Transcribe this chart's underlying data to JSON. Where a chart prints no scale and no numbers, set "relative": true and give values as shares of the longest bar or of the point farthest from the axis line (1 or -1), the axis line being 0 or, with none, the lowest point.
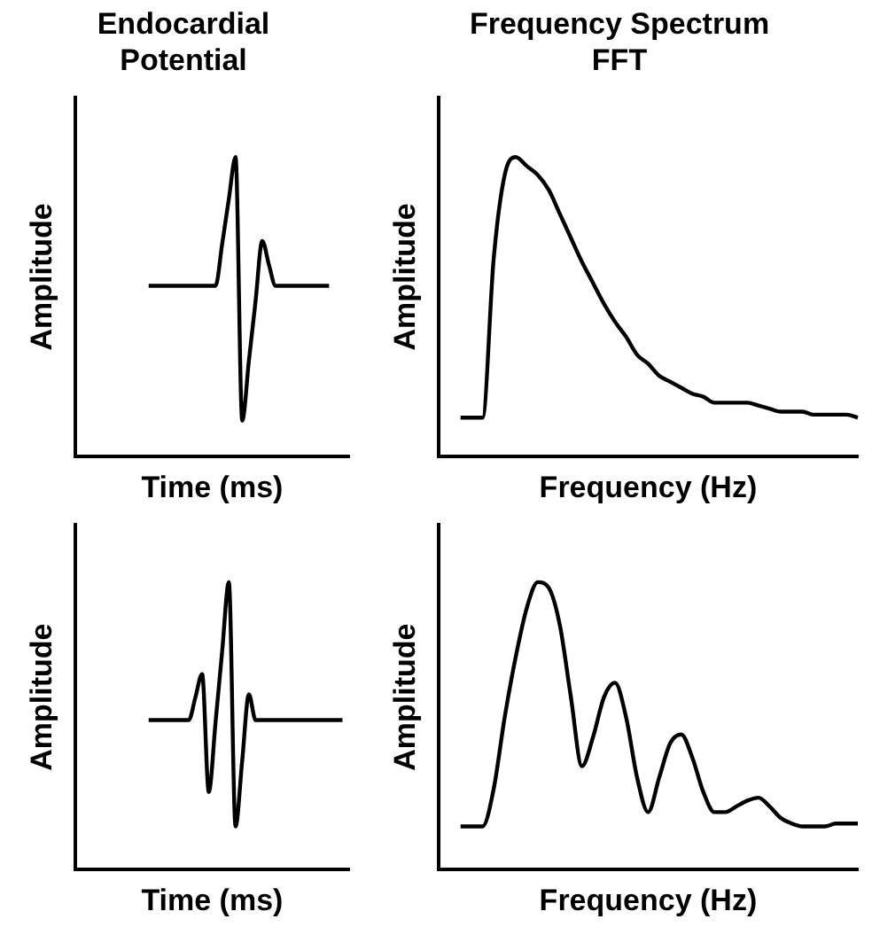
{
  "chart_data": [
    {
      "type": "line",
      "title": "Endocardial Potential",
      "xlabel": "Time (ms)",
      "ylabel": "Amplitude",
      "relative": true,
      "color": "#000000",
      "categories": [
        null,
        null,
        null,
        null,
        null,
        null,
        null,
        null,
        null,
        null,
        null,
        null,
        null,
        null,
        null,
        null,
        null,
        null,
        null,
        null,
        null,
        null,
        null,
        null,
        null,
        null,
        null,
        null,
        null,
        null,
        null,
        null,
        null,
        null,
        null,
        null,
        null,
        null,
        null,
        null,
        null,
        null
      ],
      "values": [
        null,
        null,
        null,
        null,
        null,
        null,
        null,
        null,
        null,
        null,
        null,
        0.57,
        0.57,
        0.57,
        0.57,
        0.57,
        0.57,
        0.57,
        0.57,
        0.57,
        0.57,
        0.57,
        0.71,
        0.86,
        1,
        0.12,
        0.32,
        0.52,
        0.72,
        0.64,
        0.57,
        0.57,
        0.57,
        0.57,
        0.57,
        0.57,
        0.57,
        0.57,
        0.57,
        null,
        null,
        null
      ]
    },
    {
      "type": "line",
      "title": "Frequency Spectrum FFT",
      "xlabel": "Frequency (Hz)",
      "ylabel": "Amplitude",
      "relative": true,
      "color": "#000000",
      "categories": [
        null,
        null,
        null,
        null,
        null,
        null,
        null,
        null,
        null,
        null,
        null,
        null,
        null,
        null,
        null,
        null,
        null,
        null,
        null,
        null,
        null,
        null,
        null,
        null,
        null,
        null,
        null,
        null,
        null,
        null,
        null,
        null,
        null,
        null,
        null,
        null,
        null,
        null,
        null
      ],
      "values": [
        null,
        null,
        0.13,
        0.13,
        0.13,
        0.66,
        0.94,
        1,
        0.97,
        0.94,
        0.89,
        0.81,
        0.73,
        0.65,
        0.58,
        0.51,
        0.45,
        0.4,
        0.34,
        0.31,
        0.27,
        0.25,
        0.23,
        0.21,
        0.2,
        0.18,
        0.18,
        0.18,
        0.18,
        0.17,
        0.16,
        0.15,
        0.15,
        0.15,
        0.14,
        0.14,
        0.14,
        0.14,
        0.13
      ]
    },
    {
      "type": "line",
      "xlabel": "Time (ms)",
      "ylabel": "Amplitude",
      "relative": true,
      "color": "#000000",
      "categories": [
        null,
        null,
        null,
        null,
        null,
        null,
        null,
        null,
        null,
        null,
        null,
        null,
        null,
        null,
        null,
        null,
        null,
        null,
        null,
        null,
        null,
        null,
        null,
        null,
        null,
        null,
        null,
        null,
        null,
        null,
        null,
        null,
        null,
        null,
        null,
        null,
        null,
        null,
        null,
        null,
        null,
        null
      ],
      "values": [
        null,
        null,
        null,
        null,
        null,
        null,
        null,
        null,
        null,
        null,
        null,
        0.52,
        0.52,
        0.52,
        0.52,
        0.52,
        0.52,
        0.52,
        0.6,
        0.68,
        0.27,
        0.51,
        0.76,
        1,
        0.15,
        0.38,
        0.61,
        0.52,
        0.52,
        0.52,
        0.52,
        0.52,
        0.52,
        0.52,
        0.52,
        0.52,
        0.52,
        0.52,
        0.52,
        0.52,
        0.52,
        null
      ]
    },
    {
      "type": "line",
      "xlabel": "Frequency (Hz)",
      "ylabel": "Amplitude",
      "relative": true,
      "color": "#000000",
      "categories": [
        null,
        null,
        null,
        null,
        null,
        null,
        null,
        null,
        null,
        null,
        null,
        null,
        null,
        null,
        null,
        null,
        null,
        null,
        null,
        null,
        null,
        null,
        null,
        null,
        null,
        null,
        null,
        null,
        null,
        null,
        null,
        null,
        null,
        null,
        null,
        null,
        null,
        null,
        null
      ],
      "values": [
        null,
        null,
        0.15,
        0.15,
        0.15,
        0.28,
        0.53,
        0.74,
        0.91,
        1,
        0.98,
        0.85,
        0.6,
        0.36,
        0.46,
        0.6,
        0.65,
        0.53,
        0.32,
        0.2,
        0.32,
        0.44,
        0.47,
        0.39,
        0.27,
        0.2,
        0.2,
        0.22,
        0.24,
        0.25,
        0.22,
        0.18,
        0.16,
        0.15,
        0.15,
        0.15,
        0.16,
        0.16,
        0.16
      ]
    }
  ]
}
